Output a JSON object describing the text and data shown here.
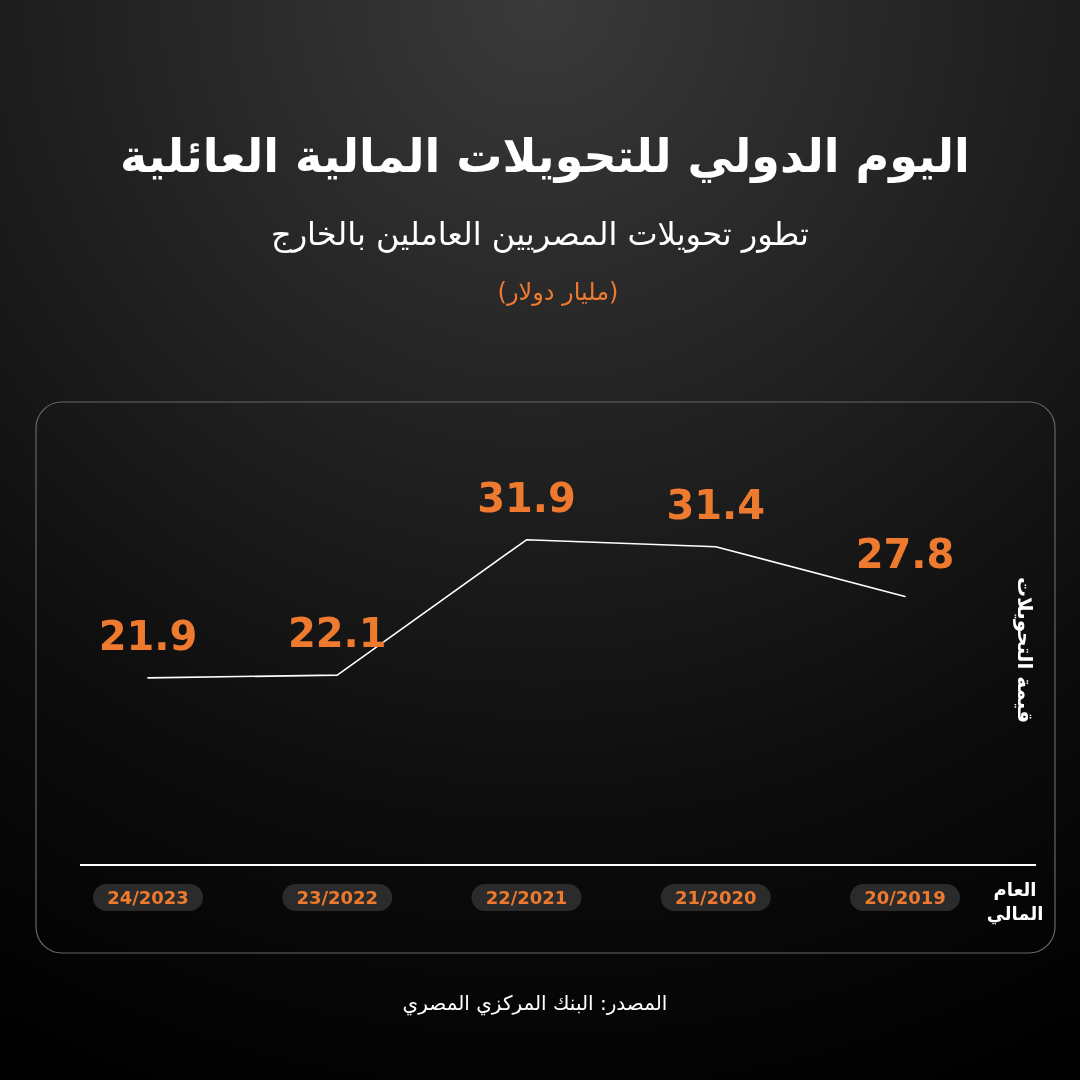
{
  "chart_data": {
    "type": "line",
    "title": "اليوم الدولي للتحويلات المالية العائلية",
    "subtitle": "تطور تحويلات المصريين العاملين بالخارج",
    "xlabel": "العام المالي",
    "ylabel": "قيمة التحويلات",
    "annotations": [
      "(مليار دولار)",
      "المصدر: البنك المركزي المصري"
    ],
    "categories": [
      "24/2023",
      "23/2022",
      "22/2021",
      "21/2020",
      "20/2019"
    ],
    "series": [
      {
        "color": "#ffffff",
        "values": [
          21.9,
          22.1,
          31.9,
          31.4,
          27.8
        ]
      }
    ],
    "data_labels": true,
    "marker": "none",
    "line_style": "solid"
  }
}
